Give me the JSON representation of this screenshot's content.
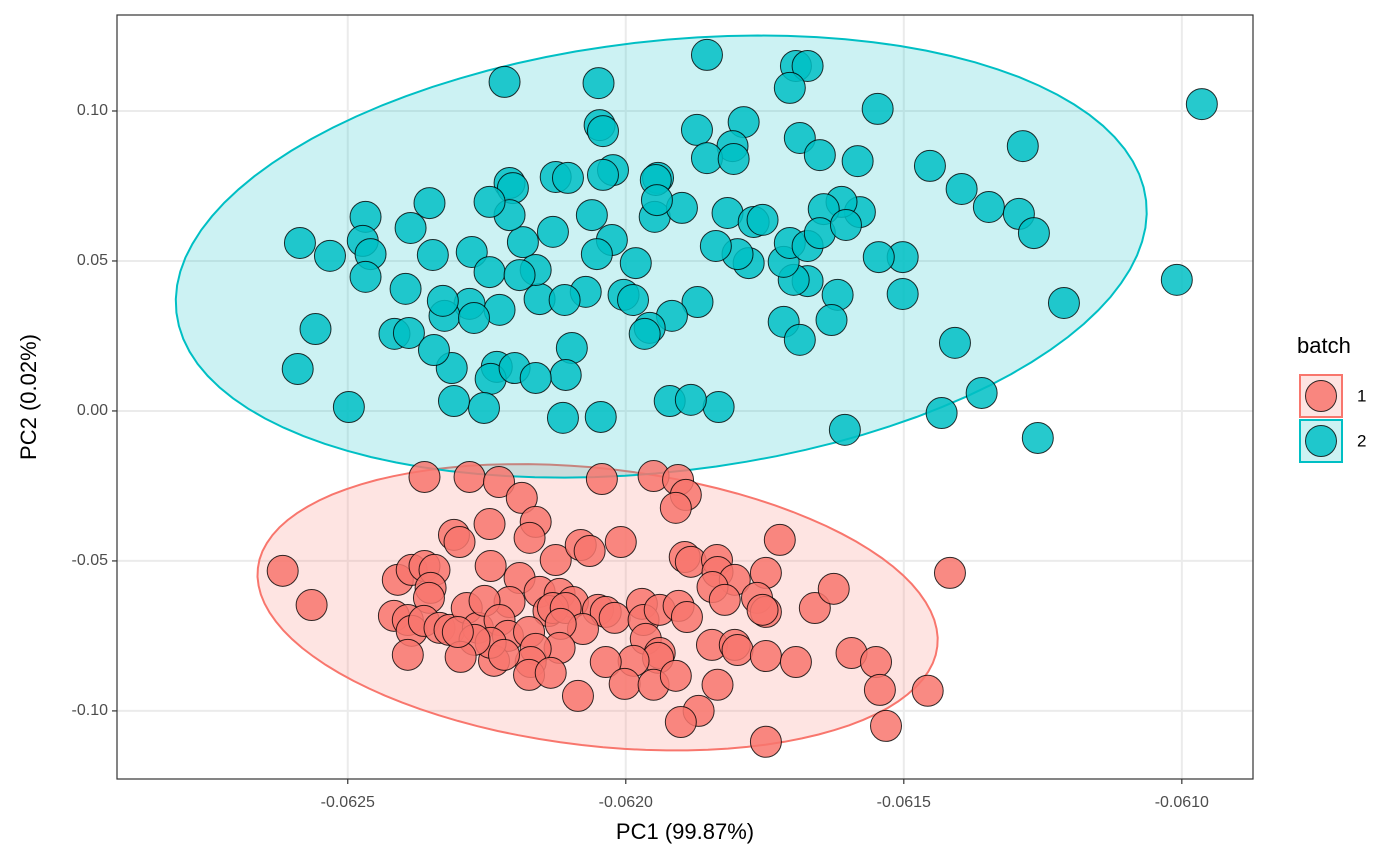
{
  "chart_data": {
    "type": "scatter",
    "x_label": "PC1 (99.87%)",
    "y_label": "PC2 (0.02%)",
    "legend_title": "batch",
    "legend_position": "right",
    "grid": true,
    "ellipse": true,
    "xlim": [
      -0.062915,
      -0.060872
    ],
    "ylim": [
      -0.1227,
      0.132
    ],
    "xticks": [
      -0.0625,
      {
        "value": -0.062,
        "label": "-0.0620"
      },
      -0.0615,
      {
        "value": -0.061,
        "label": "-0.0610"
      }
    ],
    "yticks": [
      {
        "value": -0.1,
        "label": "-0.10"
      },
      {
        "value": -0.05,
        "label": "-0.05"
      },
      {
        "value": 0,
        "label": "0.00"
      },
      {
        "value": 0.05,
        "label": "0.05"
      },
      {
        "value": 0.1,
        "label": "0.10"
      }
    ],
    "series": [
      {
        "name": "1",
        "color": "#F8766D",
        "x": [
          -0.062362,
          -0.062281,
          -0.062228,
          -0.062043,
          -0.06195,
          -0.061906,
          -0.061892,
          -0.06191,
          -0.062187,
          -0.062162,
          -0.062245,
          -0.062309,
          -0.062299,
          -0.062173,
          -0.062126,
          -0.062009,
          -0.062081,
          -0.062065,
          -0.061894,
          -0.061883,
          -0.061836,
          -0.061723,
          -0.061748,
          -0.061835,
          -0.061804,
          -0.061844,
          -0.061822,
          -0.061764,
          -0.061748,
          -0.06166,
          -0.061626,
          -0.061417,
          -0.062617,
          -0.062565,
          -0.06241,
          -0.062385,
          -0.062362,
          -0.062344,
          -0.062351,
          -0.062354,
          -0.062417,
          -0.062392,
          -0.062385,
          -0.062392,
          -0.062363,
          -0.062335,
          -0.062317,
          -0.062286,
          -0.062266,
          -0.062243,
          -0.062191,
          -0.062155,
          -0.062119,
          -0.062095,
          -0.062139,
          -0.062209,
          -0.062254,
          -0.062227,
          -0.062212,
          -0.062174,
          -0.062131,
          -0.062108,
          -0.06205,
          -0.062036,
          -0.06202,
          -0.061971,
          -0.061968,
          -0.061939,
          -0.061905,
          -0.06189,
          -0.061964,
          -0.061939,
          -0.061942,
          -0.061986,
          -0.062036,
          -0.062077,
          -0.062117,
          -0.062119,
          -0.062162,
          -0.062171,
          -0.062174,
          -0.062237,
          -0.062243,
          -0.062272,
          -0.062297,
          -0.062302,
          -0.062219,
          -0.062135,
          -0.062086,
          -0.062002,
          -0.06195,
          -0.06191,
          -0.061835,
          -0.061845,
          -0.061804,
          -0.061799,
          -0.061748,
          -0.061694,
          -0.061594,
          -0.06155,
          -0.061543,
          -0.061457,
          -0.061532,
          -0.061869,
          -0.061901,
          -0.061748,
          -0.061754
        ],
        "values": [
          -0.022,
          -0.022,
          -0.0237,
          -0.0227,
          -0.0217,
          -0.023,
          -0.028,
          -0.0323,
          -0.029,
          -0.037,
          -0.0377,
          -0.0413,
          -0.0437,
          -0.0423,
          -0.0497,
          -0.0437,
          -0.0447,
          -0.0467,
          -0.0487,
          -0.0503,
          -0.0497,
          -0.043,
          -0.054,
          -0.0537,
          -0.0563,
          -0.0587,
          -0.063,
          -0.0623,
          -0.067,
          -0.0657,
          -0.0593,
          -0.054,
          -0.0533,
          -0.0647,
          -0.0563,
          -0.053,
          -0.0517,
          -0.053,
          -0.059,
          -0.0623,
          -0.0683,
          -0.0697,
          -0.0733,
          -0.0813,
          -0.07,
          -0.0723,
          -0.073,
          -0.0657,
          -0.0723,
          -0.0517,
          -0.0557,
          -0.0603,
          -0.061,
          -0.0637,
          -0.0667,
          -0.0637,
          -0.0633,
          -0.0697,
          -0.075,
          -0.0737,
          -0.0657,
          -0.0657,
          -0.0663,
          -0.067,
          -0.069,
          -0.0643,
          -0.0697,
          -0.0663,
          -0.065,
          -0.0687,
          -0.076,
          -0.0807,
          -0.0823,
          -0.0833,
          -0.0837,
          -0.0727,
          -0.071,
          -0.079,
          -0.0793,
          -0.0837,
          -0.088,
          -0.0833,
          -0.0773,
          -0.0763,
          -0.082,
          -0.0737,
          -0.0813,
          -0.0873,
          -0.095,
          -0.091,
          -0.0913,
          -0.0883,
          -0.0913,
          -0.078,
          -0.078,
          -0.0797,
          -0.0817,
          -0.0837,
          -0.0807,
          -0.0837,
          -0.093,
          -0.0933,
          -0.105,
          -0.1,
          -0.1037,
          -0.1103,
          -0.0663
        ]
      },
      {
        "name": "2",
        "color": "#00BFC4",
        "x": [
          -0.061854,
          -0.062218,
          -0.062049,
          -0.061694,
          -0.061673,
          -0.061705,
          -0.061547,
          -0.060964,
          -0.062047,
          -0.062041,
          -0.061872,
          -0.061788,
          -0.061687,
          -0.061808,
          -0.062023,
          -0.061854,
          -0.061942,
          -0.062126,
          -0.062104,
          -0.062209,
          -0.061806,
          -0.061651,
          -0.061583,
          -0.061453,
          -0.061396,
          -0.061286,
          -0.061347,
          -0.061293,
          -0.061266,
          -0.061212,
          -0.061009,
          -0.061408,
          -0.06136,
          -0.061432,
          -0.061606,
          -0.061259,
          -0.061502,
          -0.061502,
          -0.061545,
          -0.061579,
          -0.061612,
          -0.061644,
          -0.061619,
          -0.06163,
          -0.061673,
          -0.061698,
          -0.061716,
          -0.061779,
          -0.061817,
          -0.06177,
          -0.061799,
          -0.061838,
          -0.061871,
          -0.061917,
          -0.061957,
          -0.061966,
          -0.061982,
          -0.062004,
          -0.062025,
          -0.062052,
          -0.062072,
          -0.062097,
          -0.062108,
          -0.062113,
          -0.062045,
          -0.062131,
          -0.062155,
          -0.062185,
          -0.062162,
          -0.062203,
          -0.062209,
          -0.062245,
          -0.062277,
          -0.062281,
          -0.062227,
          -0.062232,
          -0.062243,
          -0.062255,
          -0.062309,
          -0.062313,
          -0.062326,
          -0.062329,
          -0.062347,
          -0.062353,
          -0.062387,
          -0.062396,
          -0.062416,
          -0.06239,
          -0.062345,
          -0.062468,
          -0.062473,
          -0.062459,
          -0.062468,
          -0.062532,
          -0.062586,
          -0.062558,
          -0.06259,
          -0.062498,
          -0.061833,
          -0.061921,
          -0.062041,
          -0.061948,
          -0.061987,
          -0.062061,
          -0.06211,
          -0.0622,
          -0.062162,
          -0.062245,
          -0.062273,
          -0.062191,
          -0.061899,
          -0.061883,
          -0.061716,
          -0.061687,
          -0.061754,
          -0.061705,
          -0.061673,
          -0.061651,
          -0.061946,
          -0.061944,
          -0.061604
        ],
        "values": [
          0.1187,
          0.1097,
          0.1093,
          0.115,
          0.115,
          0.1077,
          0.1007,
          0.1023,
          0.0953,
          0.0933,
          0.0937,
          0.0963,
          0.091,
          0.0883,
          0.0803,
          0.0843,
          0.0777,
          0.078,
          0.0777,
          0.076,
          0.084,
          0.0853,
          0.0833,
          0.0817,
          0.074,
          0.0883,
          0.068,
          0.0657,
          0.0593,
          0.036,
          0.0437,
          0.0227,
          0.006,
          -0.0007,
          -0.0063,
          -0.009,
          0.039,
          0.0513,
          0.0513,
          0.0663,
          0.0697,
          0.0673,
          0.0387,
          0.0303,
          0.0433,
          0.0437,
          0.0497,
          0.0493,
          0.066,
          0.063,
          0.0523,
          0.055,
          0.0363,
          0.0317,
          0.0277,
          0.0257,
          0.0493,
          0.0387,
          0.057,
          0.0523,
          0.0397,
          0.021,
          0.012,
          -0.0023,
          -0.002,
          0.0597,
          0.0373,
          0.0563,
          0.047,
          0.0743,
          0.0653,
          0.0697,
          0.053,
          0.0357,
          0.0337,
          0.0147,
          0.0107,
          0.001,
          0.0033,
          0.0143,
          0.0317,
          0.0367,
          0.052,
          0.0693,
          0.061,
          0.0407,
          0.0257,
          0.026,
          0.0203,
          0.0647,
          0.0567,
          0.0523,
          0.0447,
          0.0517,
          0.056,
          0.0273,
          0.014,
          0.0013,
          0.0013,
          0.0033,
          0.0787,
          0.0647,
          0.037,
          0.0653,
          0.037,
          0.0143,
          0.011,
          0.0463,
          0.031,
          0.0453,
          0.0677,
          0.0037,
          0.0297,
          0.0237,
          0.0637,
          0.056,
          0.055,
          0.0593,
          0.077,
          0.0703,
          0.062
        ]
      }
    ]
  }
}
